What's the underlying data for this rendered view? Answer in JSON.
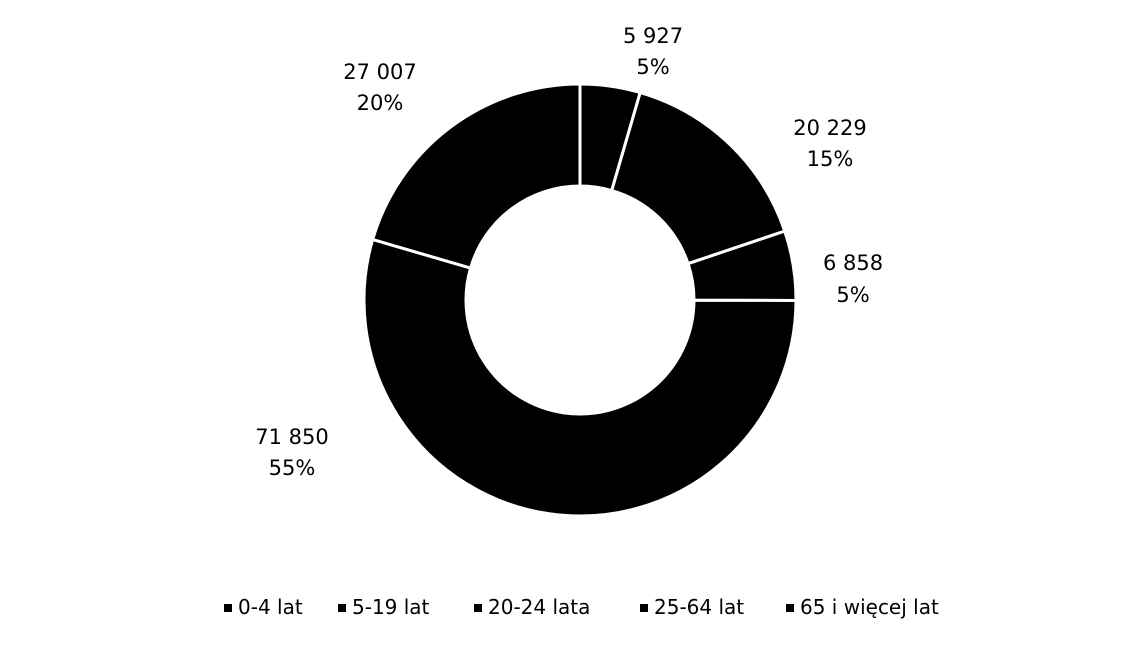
{
  "chart_data": {
    "type": "donut",
    "categories": [
      "0-4 lat",
      "5-19 lat",
      "20-24 lata",
      "25-64 lat",
      "65 i więcej lat"
    ],
    "values": [
      5927,
      20229,
      6858,
      71850,
      27007
    ],
    "value_labels": [
      "5 927",
      "20 229",
      "6 858",
      "71 850",
      "27 007"
    ],
    "percent_labels": [
      "5%",
      "15%",
      "5%",
      "55%",
      "20%"
    ],
    "colors": [
      "#000000",
      "#000000",
      "#000000",
      "#000000",
      "#000000"
    ],
    "separator_color": "#ffffff",
    "legend_position": "bottom"
  }
}
